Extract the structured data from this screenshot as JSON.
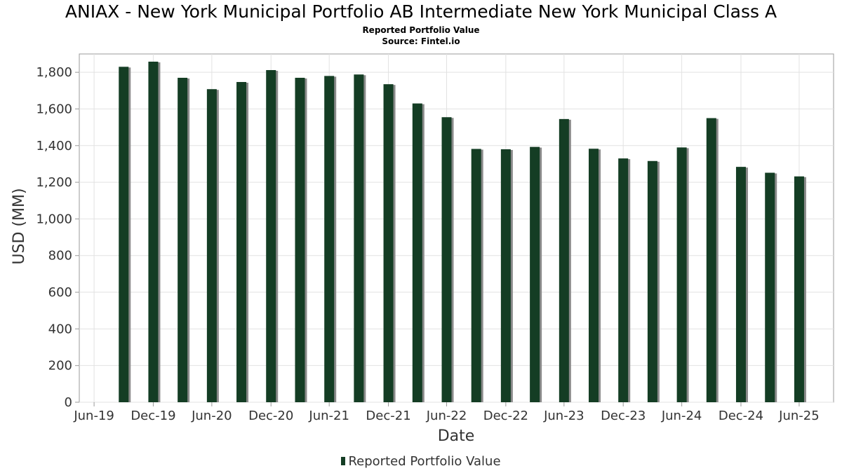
{
  "chart_data": {
    "type": "bar",
    "title": "ANIAX - New York Municipal Portfolio AB Intermediate New York Municipal Class A",
    "subtitle": "Reported Portfolio Value",
    "source": "Source: Fintel.io",
    "xlabel": "Date",
    "ylabel": "USD (MM)",
    "ylim": [
      0,
      1900
    ],
    "yticks": [
      0,
      200,
      400,
      600,
      800,
      1000,
      1200,
      1400,
      1600,
      1800
    ],
    "ytick_labels": [
      "0",
      "200",
      "400",
      "600",
      "800",
      "1,000",
      "1,200",
      "1,400",
      "1,600",
      "1,800"
    ],
    "xlim": [
      "2019-05-15",
      "2025-10-15"
    ],
    "xticks": [
      "2019-06-30",
      "2019-12-31",
      "2020-06-30",
      "2020-12-31",
      "2021-06-30",
      "2021-12-31",
      "2022-06-30",
      "2022-12-31",
      "2023-06-30",
      "2023-12-31",
      "2024-06-30",
      "2024-12-31",
      "2025-06-30"
    ],
    "xtick_labels": [
      "Jun-19",
      "Dec-19",
      "Jun-20",
      "Dec-20",
      "Jun-21",
      "Dec-21",
      "Jun-22",
      "Dec-22",
      "Jun-23",
      "Dec-23",
      "Jun-24",
      "Dec-24",
      "Jun-25"
    ],
    "grid": true,
    "legend_position": "bottom-center",
    "bar_color": "#143d24",
    "shadow_color": "#8a8a8a",
    "series": [
      {
        "name": "Reported Portfolio Value",
        "x": [
          "2019-09-30",
          "2019-12-31",
          "2020-03-31",
          "2020-06-30",
          "2020-09-30",
          "2020-12-31",
          "2021-03-31",
          "2021-06-30",
          "2021-09-30",
          "2021-12-31",
          "2022-03-31",
          "2022-06-30",
          "2022-09-30",
          "2022-12-31",
          "2023-03-31",
          "2023-06-30",
          "2023-09-30",
          "2023-12-31",
          "2024-03-31",
          "2024-06-30",
          "2024-09-30",
          "2024-12-31",
          "2025-03-31",
          "2025-06-30"
        ],
        "values": [
          1830,
          1858,
          1770,
          1708,
          1747,
          1812,
          1770,
          1780,
          1788,
          1735,
          1630,
          1555,
          1382,
          1380,
          1393,
          1545,
          1383,
          1330,
          1316,
          1390,
          1550,
          1284,
          1252,
          1232
        ]
      }
    ]
  }
}
